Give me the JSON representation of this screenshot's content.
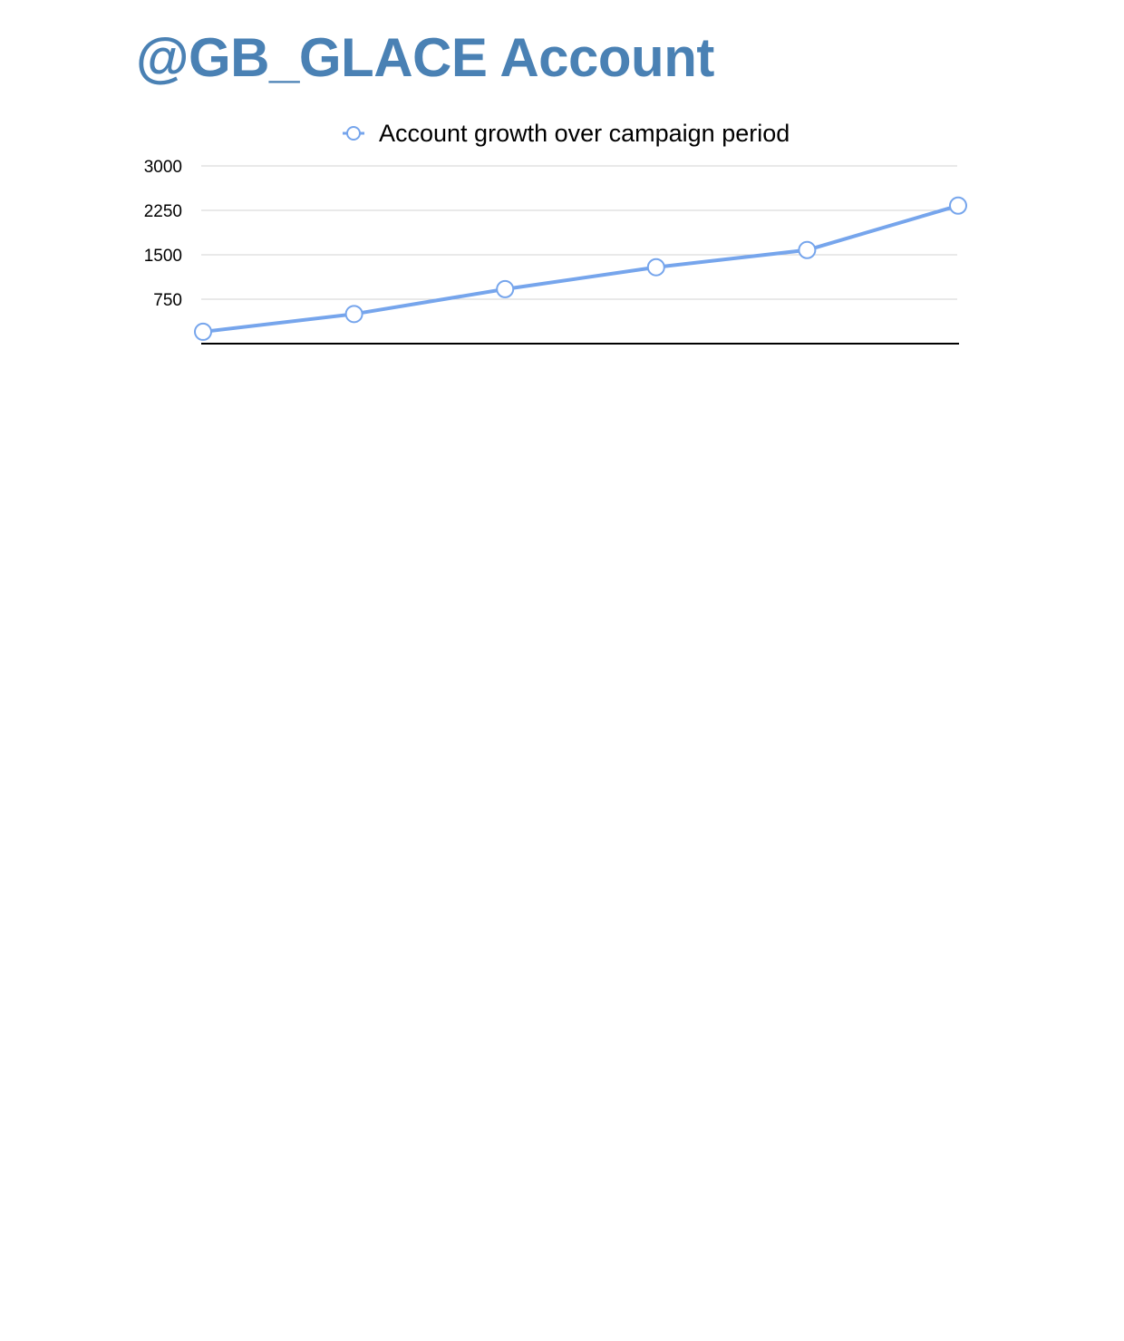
{
  "page": {
    "title": "@GB_GLACE Account"
  },
  "colors": {
    "title": "#4a81b4",
    "series": "#76a5ec",
    "gridline": "#d3d3d3",
    "baseline": "#000000"
  },
  "chart_data": {
    "type": "line",
    "title": "",
    "xlabel": "",
    "ylabel": "",
    "ylim": [
      0,
      3000
    ],
    "y_ticks": [
      750,
      1500,
      2250,
      3000
    ],
    "grid": true,
    "legend_position": "top-center",
    "x": [
      1,
      2,
      3,
      4,
      5,
      6
    ],
    "series": [
      {
        "name": "Account growth over campaign period",
        "color": "#76a5ec",
        "values": [
          200,
          500,
          920,
          1290,
          1580,
          2330
        ]
      }
    ]
  }
}
